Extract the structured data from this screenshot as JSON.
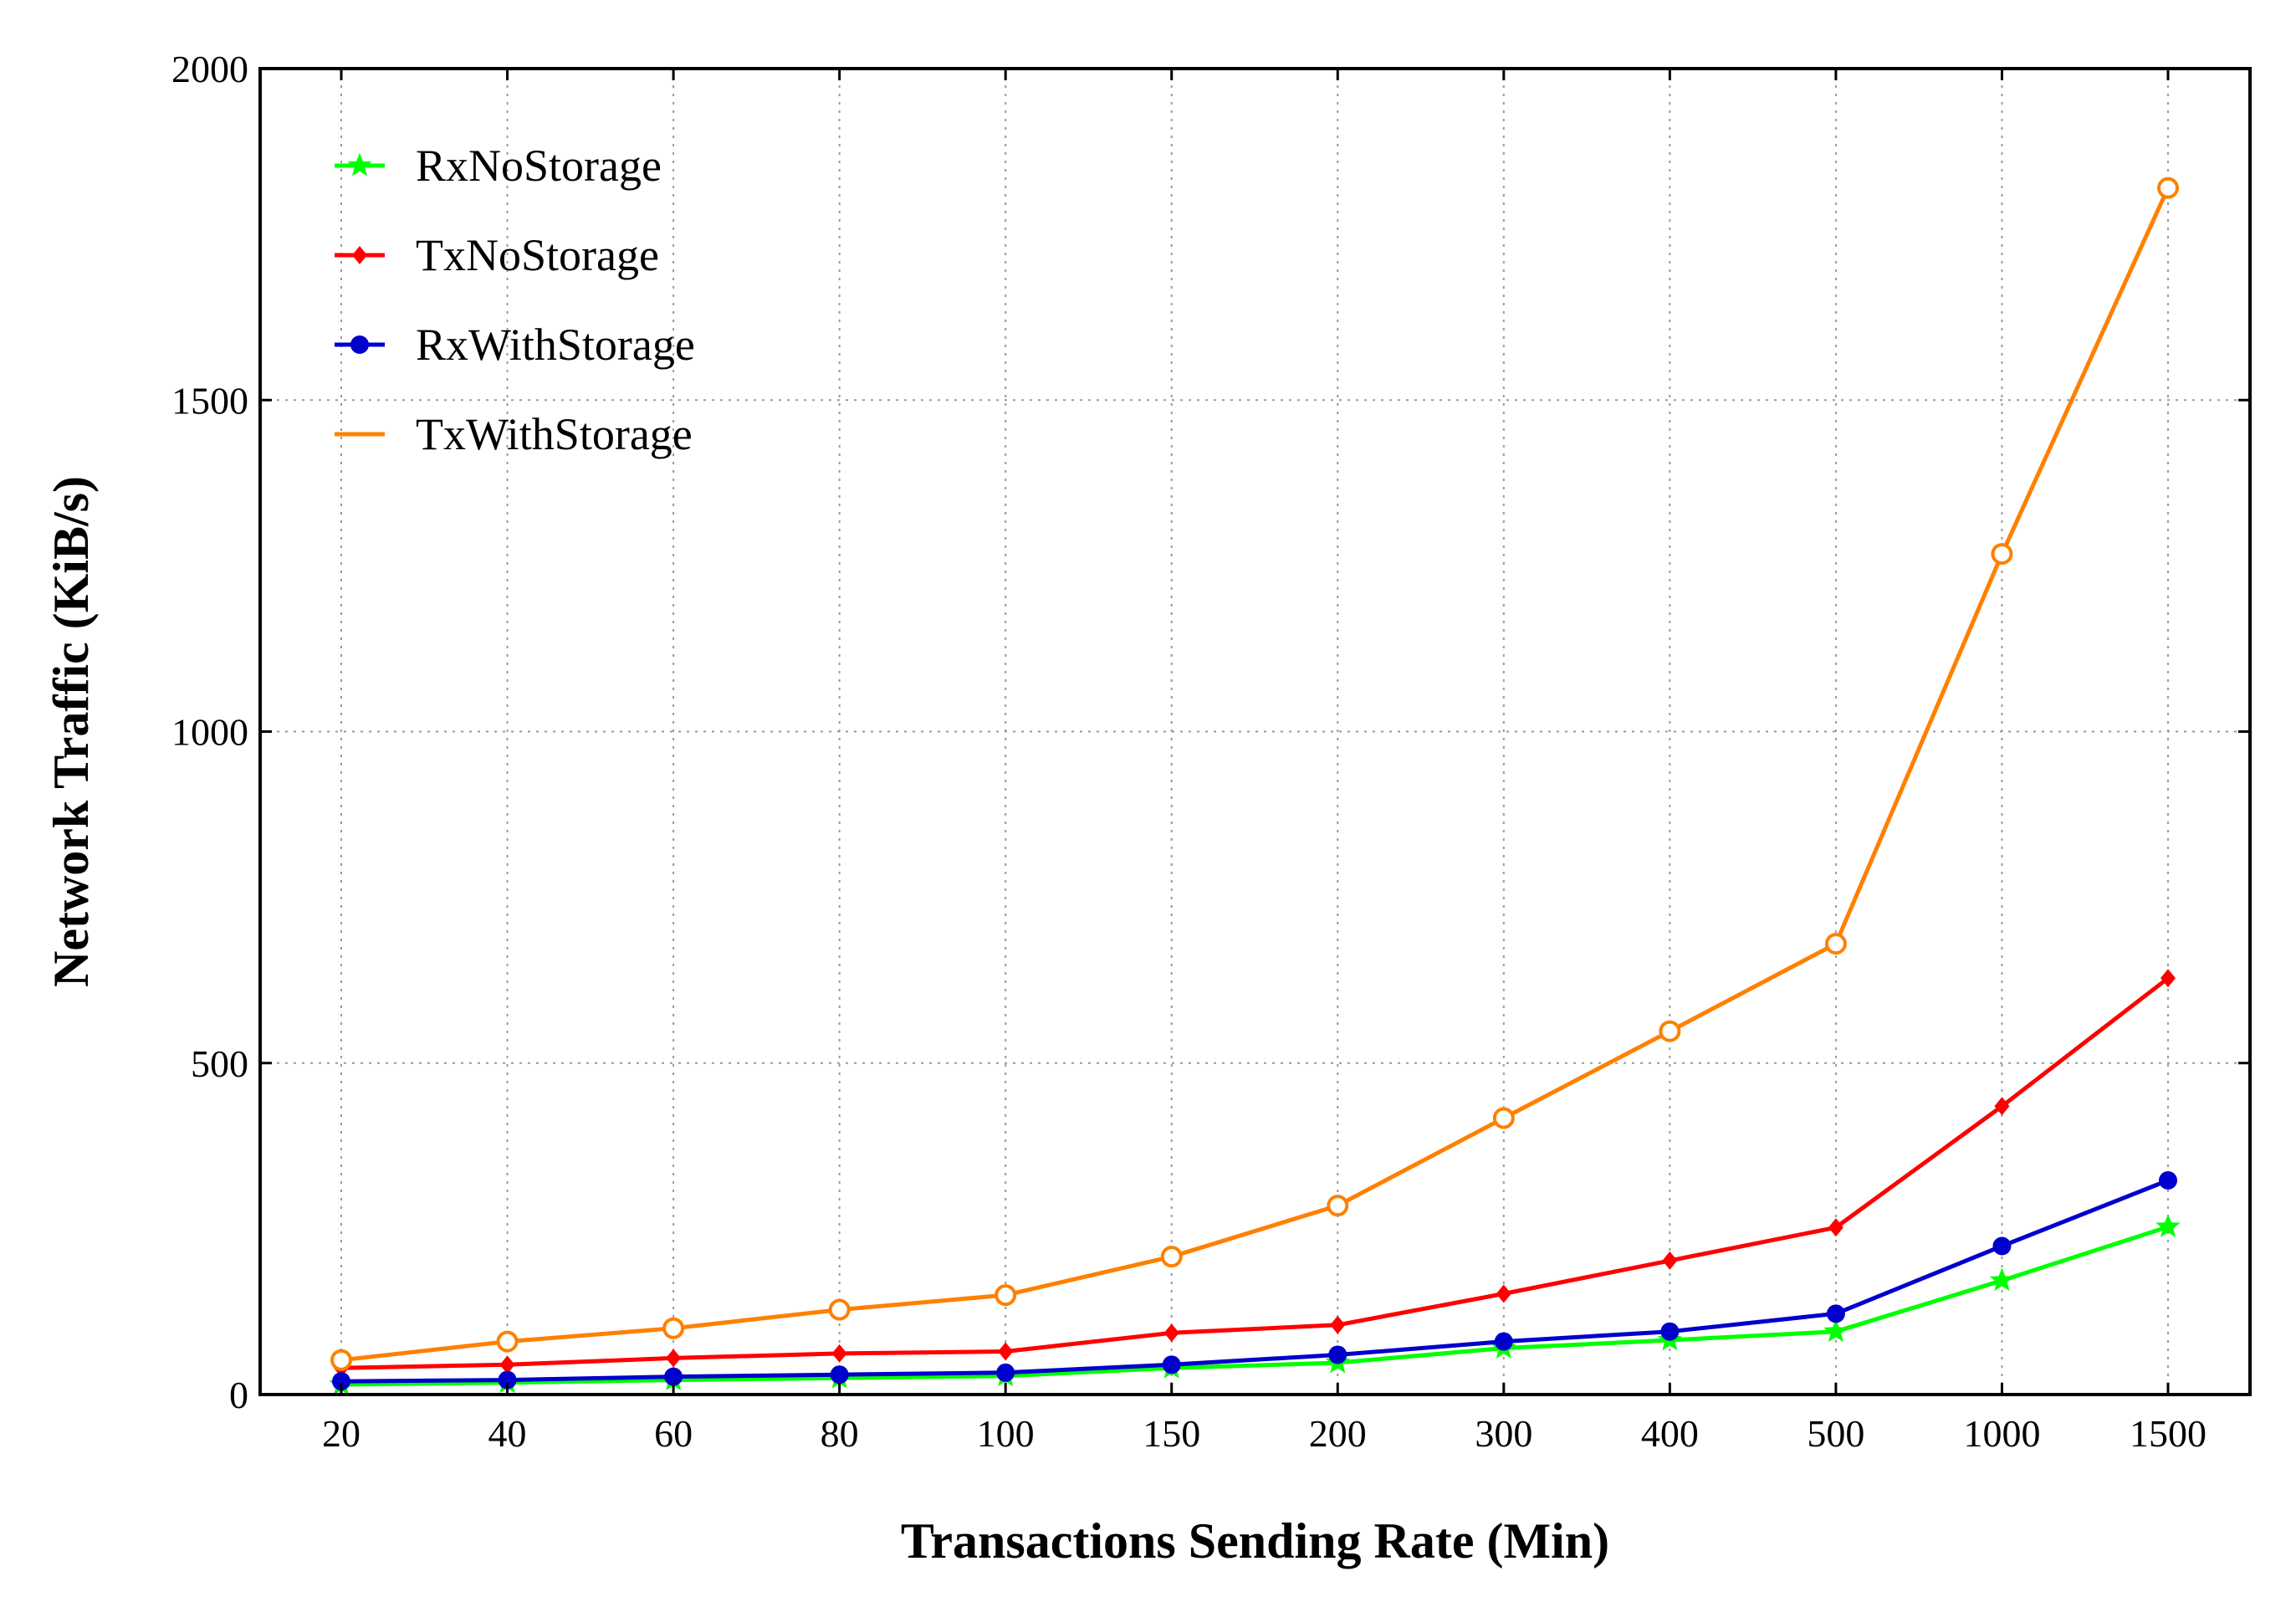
{
  "chart_data": {
    "type": "line",
    "title": "",
    "xlabel": "Transactions Sending Rate (Min)",
    "ylabel": "Network Traffic (KiB/s)",
    "categories": [
      "20",
      "40",
      "60",
      "80",
      "100",
      "150",
      "200",
      "300",
      "400",
      "500",
      "1000",
      "1500"
    ],
    "ylim": [
      0,
      2000
    ],
    "yticks": [
      "0",
      "500",
      "1000",
      "1500",
      "2000"
    ],
    "grid": true,
    "legend_position": "top-left",
    "series": [
      {
        "name": "RxNoStorage",
        "color": "#00ff00",
        "marker": "star",
        "values": [
          15,
          18,
          22,
          25,
          28,
          40,
          48,
          70,
          82,
          95,
          172,
          253
        ]
      },
      {
        "name": "TxNoStorage",
        "color": "#ff0000",
        "marker": "diamond",
        "values": [
          40,
          45,
          55,
          62,
          65,
          93,
          105,
          152,
          202,
          252,
          435,
          628
        ]
      },
      {
        "name": "RxWithStorage",
        "color": "#0000cc",
        "marker": "circle",
        "values": [
          20,
          22,
          27,
          30,
          33,
          45,
          60,
          80,
          95,
          122,
          224,
          323
        ]
      },
      {
        "name": "TxWithStorage",
        "color": "#ff8000",
        "marker": "open-circle",
        "values": [
          52,
          80,
          100,
          128,
          150,
          208,
          285,
          417,
          548,
          680,
          1268,
          1820
        ]
      }
    ]
  }
}
